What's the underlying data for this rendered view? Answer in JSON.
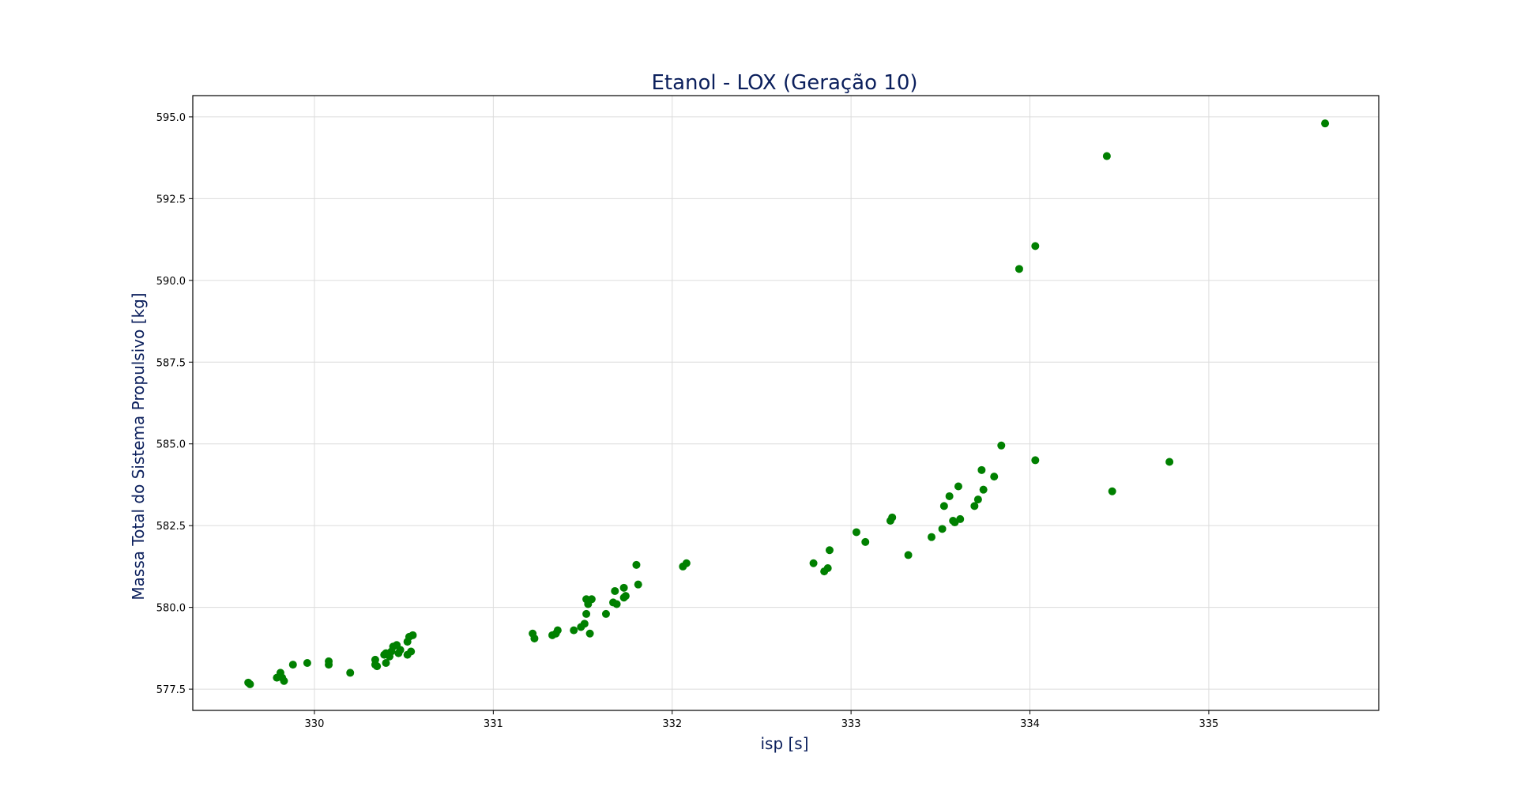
{
  "chart_data": {
    "type": "scatter",
    "title": "Etanol - LOX (Geração 10)",
    "xlabel": "isp [s]",
    "ylabel": "Massa Total do Sistema Propulsivo [kg]",
    "xlim": [
      329.32,
      335.95
    ],
    "ylim": [
      576.85,
      595.65
    ],
    "xticks": [
      330,
      331,
      332,
      333,
      334,
      335
    ],
    "xtick_labels": [
      "330",
      "331",
      "332",
      "333",
      "334",
      "335"
    ],
    "yticks": [
      577.5,
      580.0,
      582.5,
      585.0,
      587.5,
      590.0,
      592.5,
      595.0
    ],
    "ytick_labels": [
      "577.5",
      "580.0",
      "582.5",
      "585.0",
      "587.5",
      "590.0",
      "592.5",
      "595.0"
    ],
    "grid": true,
    "marker_color": "#008000",
    "title_color": "#0b1f5c",
    "series": [
      {
        "x": [
          329.63,
          329.64,
          329.79,
          329.81,
          329.82,
          329.83,
          329.88,
          329.96,
          330.08,
          330.08,
          330.2,
          330.34,
          330.34,
          330.35,
          330.39,
          330.4,
          330.4,
          330.42,
          330.43,
          330.44,
          330.46,
          330.47,
          330.48,
          330.52,
          330.52,
          330.53,
          330.54,
          330.55,
          331.22,
          331.23,
          331.33,
          331.35,
          331.36,
          331.45,
          331.49,
          331.51,
          331.52,
          331.52,
          331.53,
          331.54,
          331.55,
          331.63,
          331.67,
          331.68,
          331.69,
          331.73,
          331.73,
          331.74,
          331.8,
          331.81,
          332.06,
          332.08,
          332.79,
          332.85,
          332.87,
          332.88,
          333.03,
          333.08,
          333.22,
          333.23,
          333.32,
          333.45,
          333.51,
          333.52,
          333.55,
          333.57,
          333.58,
          333.6,
          333.61,
          333.69,
          333.71,
          333.73,
          333.74,
          333.8,
          333.84,
          333.94,
          334.03,
          334.03,
          334.43,
          334.46,
          334.78,
          335.65
        ],
        "y": [
          577.7,
          577.65,
          577.85,
          578.0,
          577.85,
          577.75,
          578.25,
          578.3,
          578.25,
          578.35,
          578.0,
          578.25,
          578.4,
          578.2,
          578.55,
          578.3,
          578.6,
          578.5,
          578.65,
          578.8,
          578.85,
          578.6,
          578.7,
          578.55,
          578.95,
          579.1,
          578.65,
          579.15,
          579.2,
          579.05,
          579.15,
          579.2,
          579.3,
          579.3,
          579.4,
          579.5,
          579.8,
          580.25,
          580.1,
          579.2,
          580.25,
          579.8,
          580.15,
          580.5,
          580.1,
          580.3,
          580.6,
          580.35,
          581.3,
          580.7,
          581.25,
          581.35,
          581.35,
          581.1,
          581.2,
          581.75,
          582.3,
          582.0,
          582.65,
          582.75,
          581.6,
          582.15,
          582.4,
          583.1,
          583.4,
          582.65,
          582.6,
          583.7,
          582.7,
          583.1,
          583.3,
          584.2,
          583.6,
          584.0,
          584.95,
          590.35,
          584.5,
          591.05,
          593.8,
          583.55,
          584.45,
          594.8
        ]
      }
    ]
  }
}
